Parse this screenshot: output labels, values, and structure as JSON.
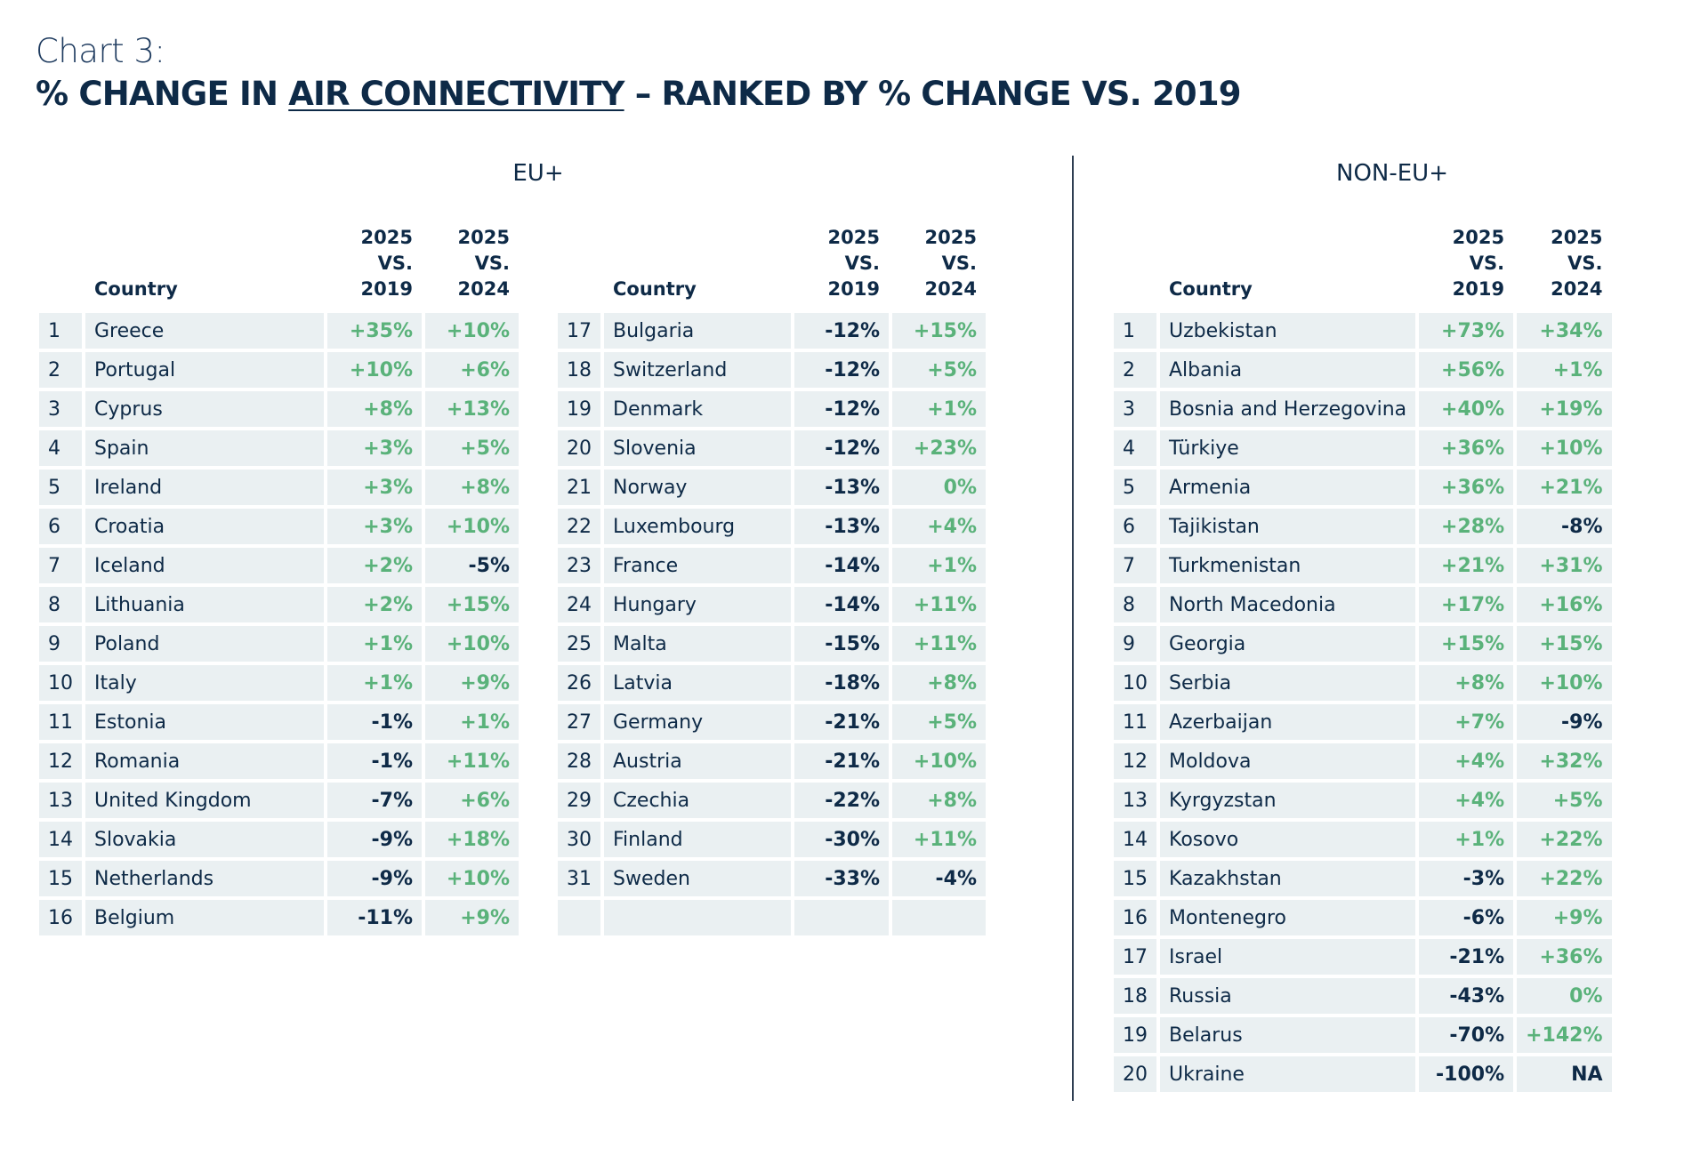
{
  "header": {
    "chart_number": "Chart 3:",
    "title_before": "% CHANGE IN ",
    "title_underlined": "AIR CONNECTIVITY",
    "title_after": " – RANKED BY % CHANGE VS. 2019"
  },
  "colors": {
    "positive": "#5ab27a",
    "negative": "#0e2a47",
    "cell_bg": "#eaf0f2",
    "text": "#0e2a47"
  },
  "columns": {
    "country": "Country",
    "vs2019_top": "2025",
    "vs2019_bottom": "VS. 2019",
    "vs2024_top": "2025",
    "vs2024_bottom": "VS. 2024"
  },
  "sections": {
    "eu": "EU+",
    "non_eu": "NON-EU+"
  },
  "chart_data": {
    "type": "table",
    "title": "% CHANGE IN AIR CONNECTIVITY – RANKED BY % CHANGE VS. 2019",
    "eu": [
      {
        "rank": "1",
        "country": "Greece",
        "vs2019": "+35%",
        "vs2024": "+10%"
      },
      {
        "rank": "2",
        "country": "Portugal",
        "vs2019": "+10%",
        "vs2024": "+6%"
      },
      {
        "rank": "3",
        "country": "Cyprus",
        "vs2019": "+8%",
        "vs2024": "+13%"
      },
      {
        "rank": "4",
        "country": "Spain",
        "vs2019": "+3%",
        "vs2024": "+5%"
      },
      {
        "rank": "5",
        "country": "Ireland",
        "vs2019": "+3%",
        "vs2024": "+8%"
      },
      {
        "rank": "6",
        "country": "Croatia",
        "vs2019": "+3%",
        "vs2024": "+10%"
      },
      {
        "rank": "7",
        "country": "Iceland",
        "vs2019": "+2%",
        "vs2024": "-5%"
      },
      {
        "rank": "8",
        "country": "Lithuania",
        "vs2019": "+2%",
        "vs2024": "+15%"
      },
      {
        "rank": "9",
        "country": "Poland",
        "vs2019": "+1%",
        "vs2024": "+10%"
      },
      {
        "rank": "10",
        "country": "Italy",
        "vs2019": "+1%",
        "vs2024": "+9%"
      },
      {
        "rank": "11",
        "country": "Estonia",
        "vs2019": "-1%",
        "vs2024": "+1%"
      },
      {
        "rank": "12",
        "country": "Romania",
        "vs2019": "-1%",
        "vs2024": "+11%"
      },
      {
        "rank": "13",
        "country": "United Kingdom",
        "vs2019": "-7%",
        "vs2024": "+6%"
      },
      {
        "rank": "14",
        "country": "Slovakia",
        "vs2019": "-9%",
        "vs2024": "+18%"
      },
      {
        "rank": "15",
        "country": "Netherlands",
        "vs2019": "-9%",
        "vs2024": "+10%"
      },
      {
        "rank": "16",
        "country": "Belgium",
        "vs2019": "-11%",
        "vs2024": "+9%"
      },
      {
        "rank": "17",
        "country": "Bulgaria",
        "vs2019": "-12%",
        "vs2024": "+15%"
      },
      {
        "rank": "18",
        "country": "Switzerland",
        "vs2019": "-12%",
        "vs2024": "+5%"
      },
      {
        "rank": "19",
        "country": "Denmark",
        "vs2019": "-12%",
        "vs2024": "+1%"
      },
      {
        "rank": "20",
        "country": "Slovenia",
        "vs2019": "-12%",
        "vs2024": "+23%"
      },
      {
        "rank": "21",
        "country": "Norway",
        "vs2019": "-13%",
        "vs2024": "0%"
      },
      {
        "rank": "22",
        "country": "Luxembourg",
        "vs2019": "-13%",
        "vs2024": "+4%"
      },
      {
        "rank": "23",
        "country": "France",
        "vs2019": "-14%",
        "vs2024": "+1%"
      },
      {
        "rank": "24",
        "country": "Hungary",
        "vs2019": "-14%",
        "vs2024": "+11%"
      },
      {
        "rank": "25",
        "country": "Malta",
        "vs2019": "-15%",
        "vs2024": "+11%"
      },
      {
        "rank": "26",
        "country": "Latvia",
        "vs2019": "-18%",
        "vs2024": "+8%"
      },
      {
        "rank": "27",
        "country": "Germany",
        "vs2019": "-21%",
        "vs2024": "+5%"
      },
      {
        "rank": "28",
        "country": "Austria",
        "vs2019": "-21%",
        "vs2024": "+10%"
      },
      {
        "rank": "29",
        "country": "Czechia",
        "vs2019": "-22%",
        "vs2024": "+8%"
      },
      {
        "rank": "30",
        "country": "Finland",
        "vs2019": "-30%",
        "vs2024": "+11%"
      },
      {
        "rank": "31",
        "country": "Sweden",
        "vs2019": "-33%",
        "vs2024": "-4%"
      }
    ],
    "non_eu": [
      {
        "rank": "1",
        "country": "Uzbekistan",
        "vs2019": "+73%",
        "vs2024": "+34%"
      },
      {
        "rank": "2",
        "country": "Albania",
        "vs2019": "+56%",
        "vs2024": "+1%"
      },
      {
        "rank": "3",
        "country": "Bosnia and Herzegovina",
        "vs2019": "+40%",
        "vs2024": "+19%"
      },
      {
        "rank": "4",
        "country": "Türkiye",
        "vs2019": "+36%",
        "vs2024": "+10%"
      },
      {
        "rank": "5",
        "country": "Armenia",
        "vs2019": "+36%",
        "vs2024": "+21%"
      },
      {
        "rank": "6",
        "country": "Tajikistan",
        "vs2019": "+28%",
        "vs2024": "-8%"
      },
      {
        "rank": "7",
        "country": "Turkmenistan",
        "vs2019": "+21%",
        "vs2024": "+31%"
      },
      {
        "rank": "8",
        "country": "North Macedonia",
        "vs2019": "+17%",
        "vs2024": "+16%"
      },
      {
        "rank": "9",
        "country": "Georgia",
        "vs2019": "+15%",
        "vs2024": "+15%"
      },
      {
        "rank": "10",
        "country": "Serbia",
        "vs2019": "+8%",
        "vs2024": "+10%"
      },
      {
        "rank": "11",
        "country": "Azerbaijan",
        "vs2019": "+7%",
        "vs2024": "-9%"
      },
      {
        "rank": "12",
        "country": "Moldova",
        "vs2019": "+4%",
        "vs2024": "+32%"
      },
      {
        "rank": "13",
        "country": "Kyrgyzstan",
        "vs2019": "+4%",
        "vs2024": "+5%"
      },
      {
        "rank": "14",
        "country": "Kosovo",
        "vs2019": "+1%",
        "vs2024": "+22%"
      },
      {
        "rank": "15",
        "country": "Kazakhstan",
        "vs2019": "-3%",
        "vs2024": "+22%"
      },
      {
        "rank": "16",
        "country": "Montenegro",
        "vs2019": "-6%",
        "vs2024": "+9%"
      },
      {
        "rank": "17",
        "country": "Israel",
        "vs2019": "-21%",
        "vs2024": "+36%"
      },
      {
        "rank": "18",
        "country": "Russia",
        "vs2019": "-43%",
        "vs2024": "0%"
      },
      {
        "rank": "19",
        "country": "Belarus",
        "vs2019": "-70%",
        "vs2024": "+142%"
      },
      {
        "rank": "20",
        "country": "Ukraine",
        "vs2019": "-100%",
        "vs2024": "NA"
      }
    ]
  }
}
